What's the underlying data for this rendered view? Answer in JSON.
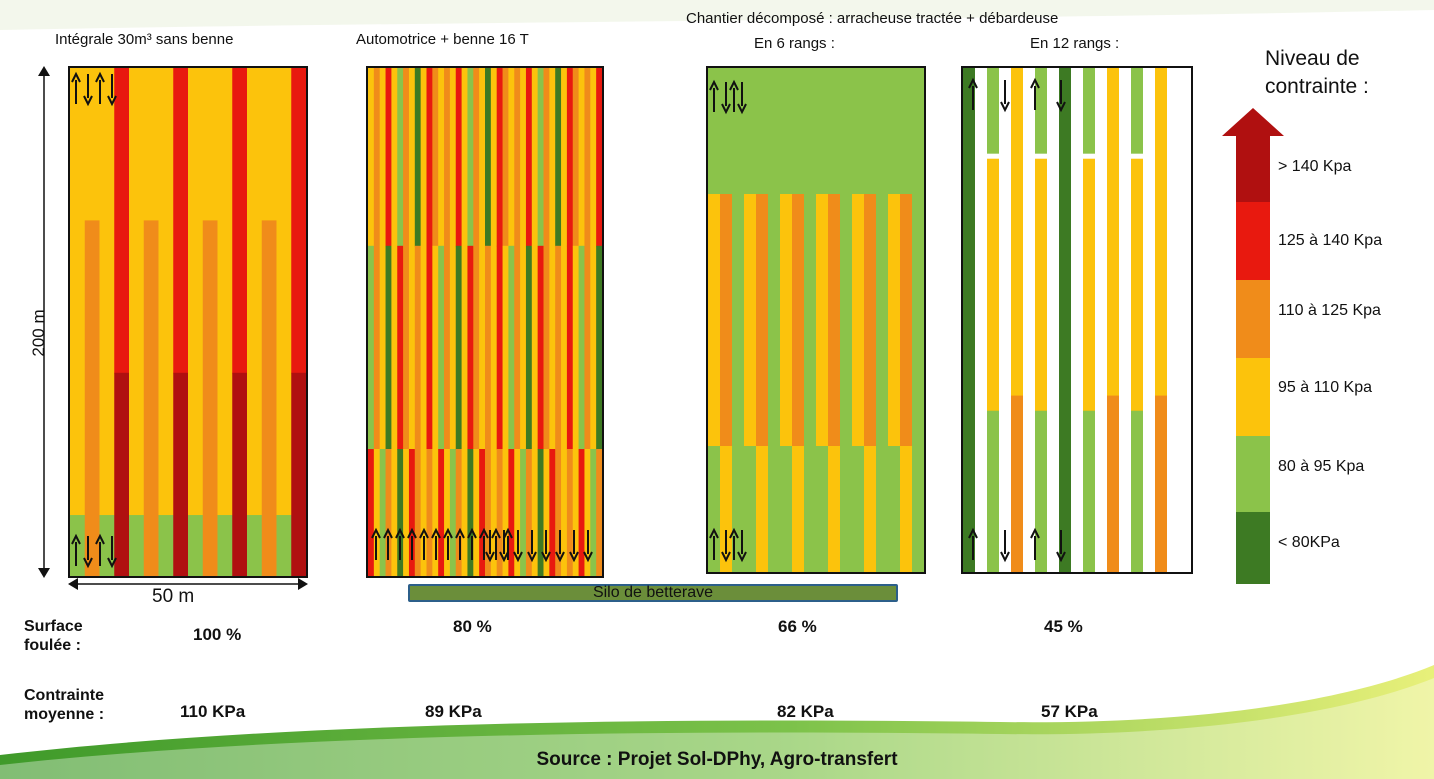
{
  "titles": {
    "field1": "Intégrale 30m³ sans benne",
    "field2": "Automotrice + benne 16 T",
    "group": "Chantier décomposé : arracheuse tractée +  débardeuse",
    "field3": "En 6 rangs :",
    "field4": "En 12 rangs :"
  },
  "dimensions": {
    "height": "200 m",
    "width": "50 m"
  },
  "silo_label": "Silo de betterave",
  "row_labels": {
    "surface": "Surface foulée :",
    "contrainte": "Contrainte moyenne :"
  },
  "surface_values": [
    "100 %",
    "80 %",
    "66 %",
    "45 %"
  ],
  "contrainte_values": [
    "110 KPa",
    "89 KPa",
    "82 KPa",
    "57 KPa"
  ],
  "legend": {
    "title": "Niveau de contrainte :",
    "levels": [
      {
        "label": "> 140 Kpa",
        "color": "#b01010"
      },
      {
        "label": "125 à 140 Kpa",
        "color": "#e8190f"
      },
      {
        "label": "110 à 125 Kpa",
        "color": "#f08c1a"
      },
      {
        "label": "95 à 110 Kpa",
        "color": "#fcc30c"
      },
      {
        "label": "80 à 95 Kpa",
        "color": "#8bc34a"
      },
      {
        "label": "< 80KPa",
        "color": "#3d7a23"
      }
    ]
  },
  "source": "Source : Projet Sol-DPhy, Agro-transfert",
  "colors": {
    "dred": "#b01010",
    "red": "#e8190f",
    "orange": "#f08c1a",
    "yellow": "#fcc30c",
    "lgreen": "#8bc34a",
    "dgreen": "#3d7a23",
    "white": "#ffffff"
  }
}
